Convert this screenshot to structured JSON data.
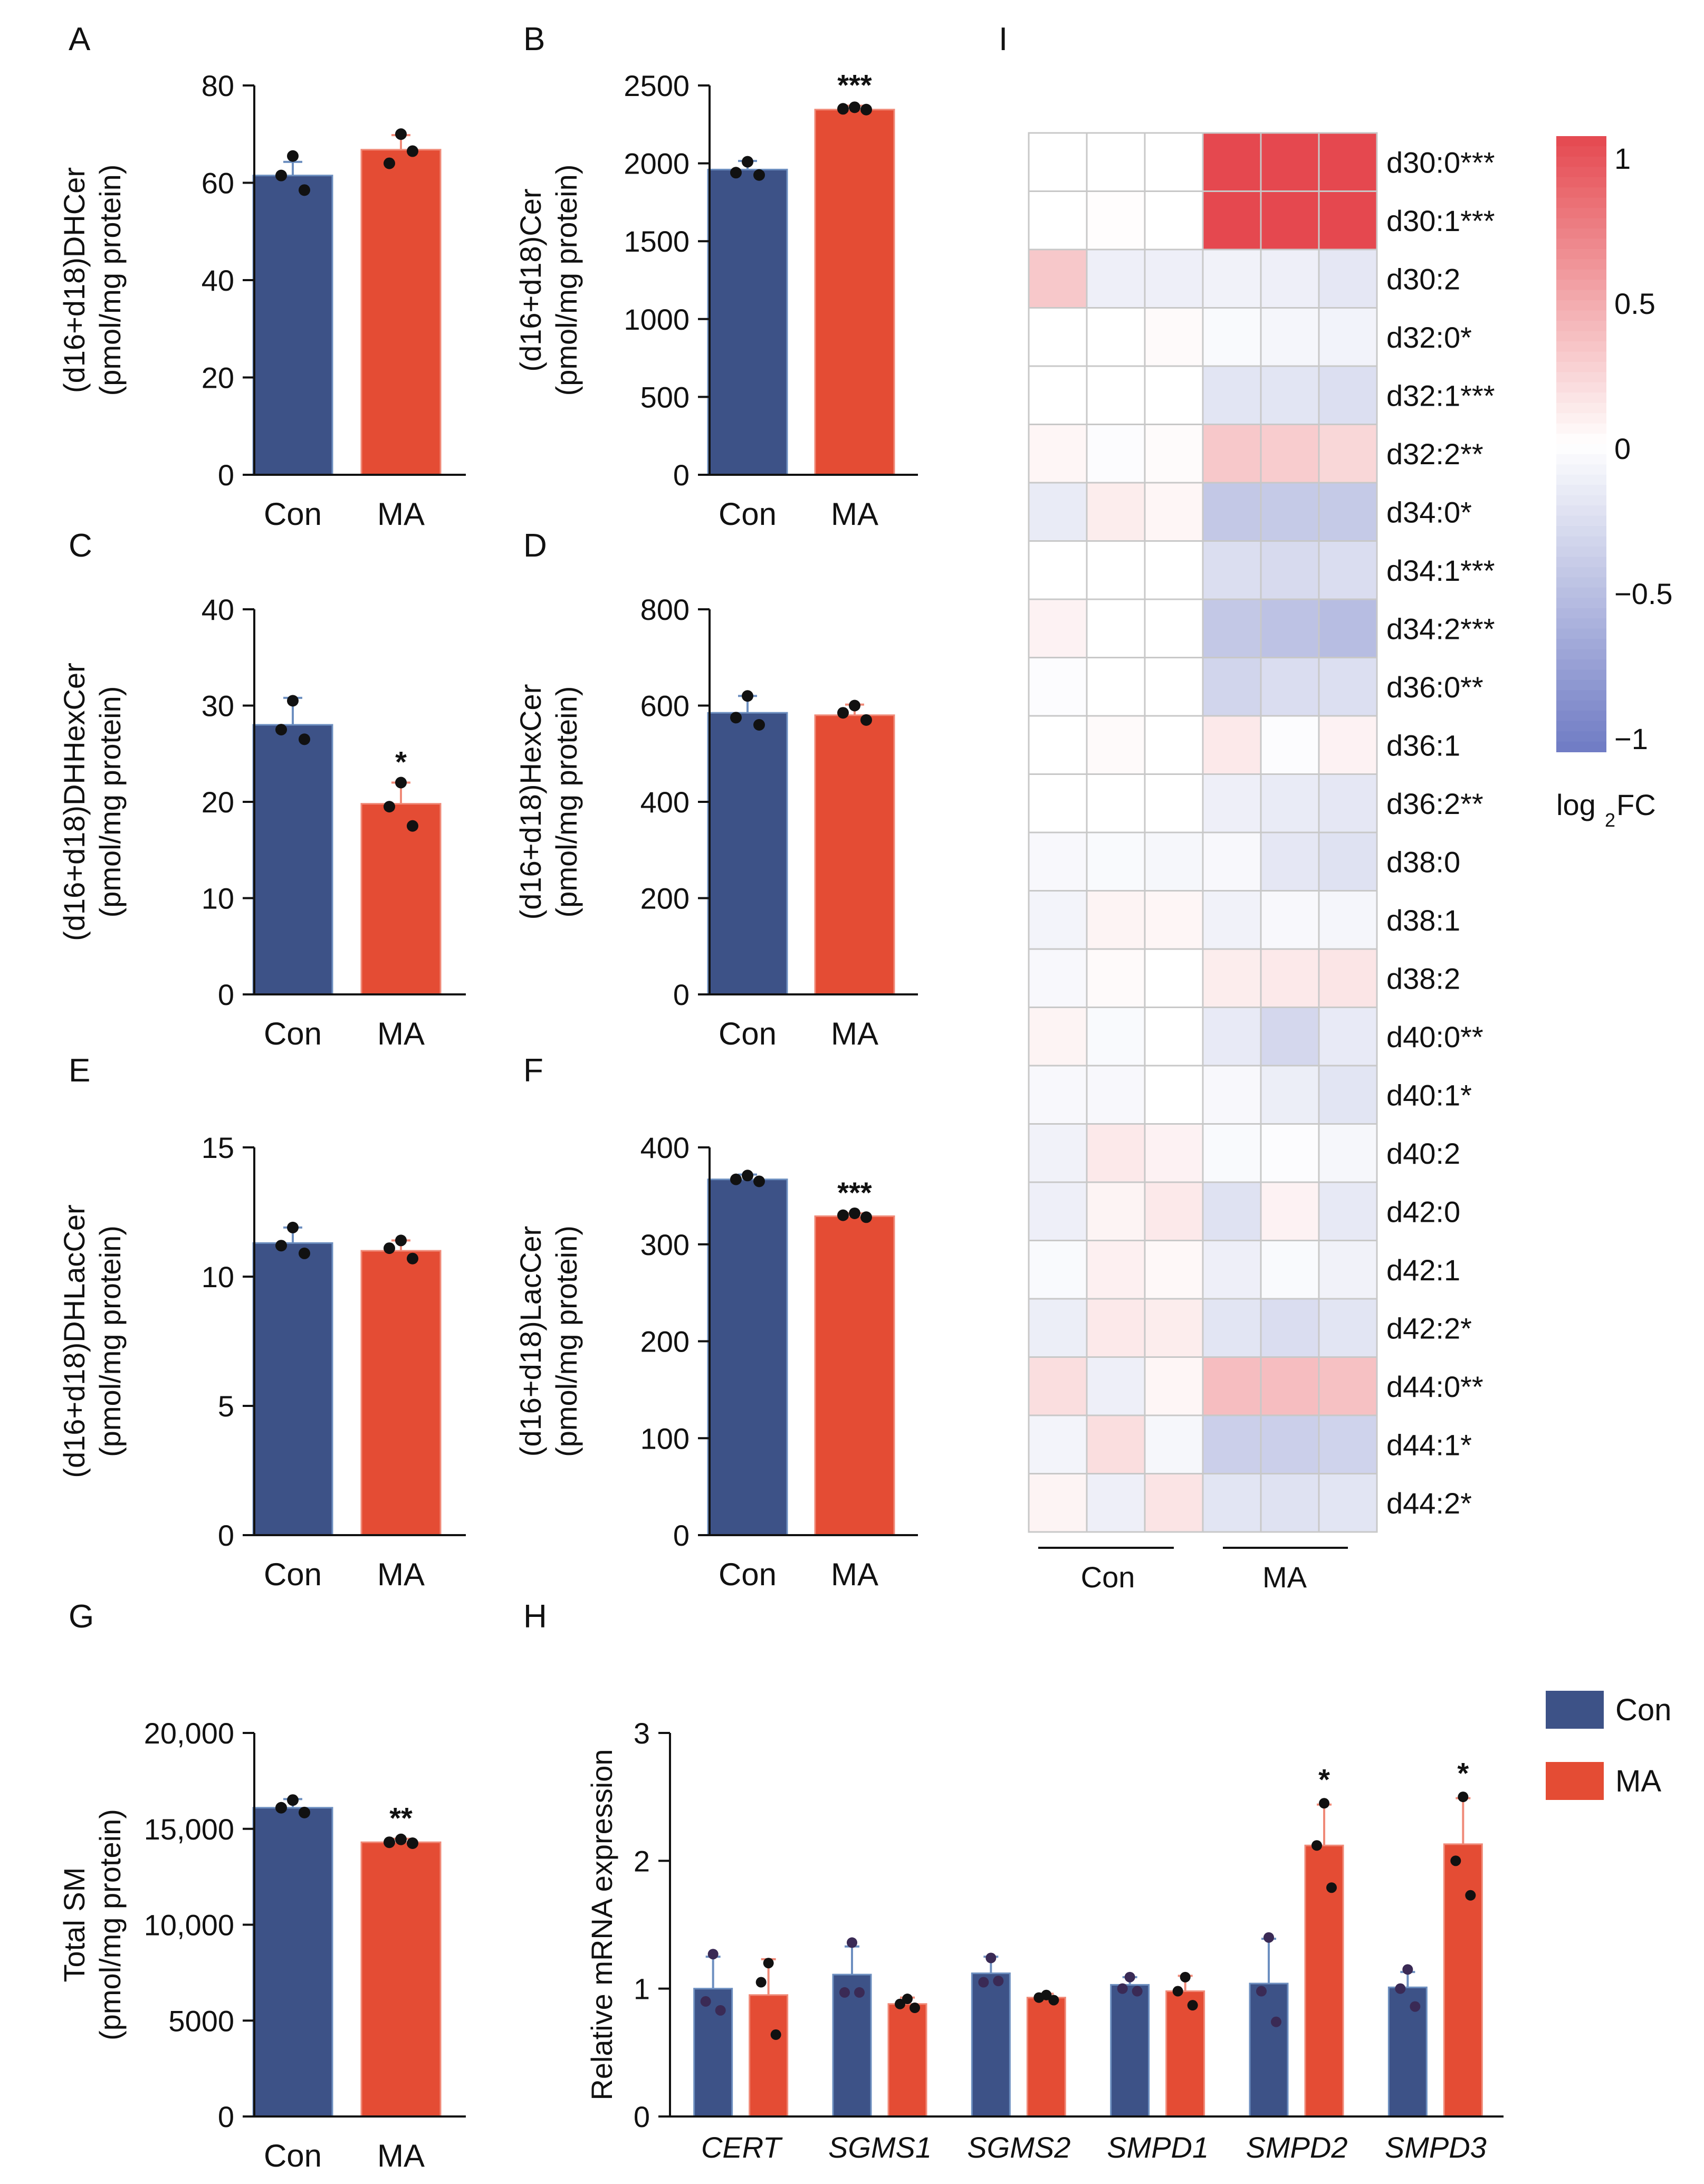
{
  "colors": {
    "con": "#3d5287",
    "ma": "#e44c34",
    "con_err": "#6d8fc0",
    "ma_err": "#f08a78",
    "dot": "#111111",
    "heat_pos": "#e5484f",
    "heat_neg": "#6f7bc4"
  },
  "chart_data": [
    {
      "id": "A",
      "panel": "A",
      "type": "bar",
      "categories": [
        "Con",
        "MA"
      ],
      "values": [
        61.5,
        66.8
      ],
      "errors": [
        2.8,
        3.0
      ],
      "points": [
        [
          65.5,
          61.5,
          58.5
        ],
        [
          70.0,
          64.0,
          66.5
        ]
      ],
      "ylabel": [
        "(d16+d18)DHCer",
        "(pmol/mg protein)"
      ],
      "ylim": [
        0,
        80
      ],
      "ticks": [
        0,
        20,
        40,
        60,
        80
      ],
      "tick_labels": [
        "0",
        "20",
        "40",
        "60",
        "80"
      ],
      "significance": [
        "",
        ""
      ]
    },
    {
      "id": "B",
      "panel": "B",
      "type": "bar",
      "categories": [
        "Con",
        "MA"
      ],
      "values": [
        1960,
        2345
      ],
      "errors": [
        55,
        25
      ],
      "points": [
        [
          2010,
          1940,
          1925
        ],
        [
          2360,
          2350,
          2345
        ]
      ],
      "ylabel": [
        "(d16+d18)Cer",
        "(pmol/mg protein)"
      ],
      "ylim": [
        0,
        2500
      ],
      "ticks": [
        0,
        500,
        1000,
        1500,
        2000,
        2500
      ],
      "tick_labels": [
        "0",
        "500",
        "1000",
        "1500",
        "2000",
        "2500"
      ],
      "significance": [
        "",
        "***"
      ]
    },
    {
      "id": "C",
      "panel": "C",
      "type": "bar",
      "categories": [
        "Con",
        "MA"
      ],
      "values": [
        28.0,
        19.8
      ],
      "errors": [
        2.8,
        2.2
      ],
      "points": [
        [
          30.5,
          27.5,
          26.5
        ],
        [
          22.0,
          19.5,
          17.5
        ]
      ],
      "ylabel": [
        "(d16+d18)DHHexCer",
        "(pmol/mg protein)"
      ],
      "ylim": [
        0,
        40
      ],
      "ticks": [
        0,
        10,
        20,
        30,
        40
      ],
      "tick_labels": [
        "0",
        "10",
        "20",
        "30",
        "40"
      ],
      "significance": [
        "",
        "*"
      ]
    },
    {
      "id": "D",
      "panel": "D",
      "type": "bar",
      "categories": [
        "Con",
        "MA"
      ],
      "values": [
        585,
        580
      ],
      "errors": [
        35,
        22
      ],
      "points": [
        [
          620,
          575,
          560
        ],
        [
          600,
          585,
          570
        ]
      ],
      "ylabel": [
        "(d16+d18)HexCer",
        "(pmol/mg protein)"
      ],
      "ylim": [
        0,
        800
      ],
      "ticks": [
        0,
        200,
        400,
        600,
        800
      ],
      "tick_labels": [
        "0",
        "200",
        "400",
        "600",
        "800"
      ],
      "significance": [
        "",
        ""
      ]
    },
    {
      "id": "E",
      "panel": "E",
      "type": "bar",
      "categories": [
        "Con",
        "MA"
      ],
      "values": [
        11.3,
        11.0
      ],
      "errors": [
        0.6,
        0.4
      ],
      "points": [
        [
          11.9,
          11.2,
          10.9
        ],
        [
          11.4,
          11.1,
          10.7
        ]
      ],
      "ylabel": [
        "(d16+d18)DHLacCer",
        "(pmol/mg protein)"
      ],
      "ylim": [
        0,
        15
      ],
      "ticks": [
        0,
        5,
        10,
        15
      ],
      "tick_labels": [
        "0",
        "5",
        "10",
        "15"
      ],
      "significance": [
        "",
        ""
      ]
    },
    {
      "id": "F",
      "panel": "F",
      "type": "bar",
      "categories": [
        "Con",
        "MA"
      ],
      "values": [
        367,
        329
      ],
      "errors": [
        5,
        3
      ],
      "points": [
        [
          371,
          367,
          365
        ],
        [
          332,
          330,
          328
        ]
      ],
      "ylabel": [
        "(d16+d18)LacCer",
        "(pmol/mg protein)"
      ],
      "ylim": [
        0,
        400
      ],
      "ticks": [
        0,
        100,
        200,
        300,
        400
      ],
      "tick_labels": [
        "0",
        "100",
        "200",
        "300",
        "400"
      ],
      "significance": [
        "",
        "***"
      ]
    },
    {
      "id": "G",
      "panel": "G",
      "type": "bar",
      "categories": [
        "Con",
        "MA"
      ],
      "values": [
        16100,
        14300
      ],
      "errors": [
        450,
        180
      ],
      "points": [
        [
          16500,
          16100,
          15850
        ],
        [
          14450,
          14300,
          14250
        ]
      ],
      "ylabel": [
        "Total SM",
        "(pmol/mg protein)"
      ],
      "ylim": [
        0,
        20000
      ],
      "ticks": [
        0,
        5000,
        10000,
        15000,
        20000
      ],
      "tick_labels": [
        "0",
        "5000",
        "10,000",
        "15,000",
        "20,000"
      ],
      "significance": [
        "",
        "**"
      ]
    },
    {
      "id": "H",
      "panel": "H",
      "type": "bar",
      "categories": [
        "CERT",
        "SGMS1",
        "SGMS2",
        "SMPD1",
        "SMPD2",
        "SMPD3"
      ],
      "series": [
        {
          "name": "Con",
          "values": [
            1.0,
            1.11,
            1.12,
            1.03,
            1.04,
            1.01
          ],
          "errors": [
            0.25,
            0.22,
            0.13,
            0.06,
            0.35,
            0.12
          ],
          "points": [
            [
              1.27,
              0.9,
              0.83
            ],
            [
              1.36,
              0.97,
              0.97
            ],
            [
              1.24,
              1.05,
              1.06
            ],
            [
              1.09,
              1.0,
              0.98
            ],
            [
              1.4,
              0.98,
              0.74
            ],
            [
              1.15,
              1.0,
              0.86
            ]
          ]
        },
        {
          "name": "MA",
          "values": [
            0.95,
            0.88,
            0.93,
            0.98,
            2.12,
            2.13
          ],
          "errors": [
            0.28,
            0.05,
            0.03,
            0.12,
            0.32,
            0.36
          ],
          "points": [
            [
              1.2,
              1.05,
              0.64
            ],
            [
              0.92,
              0.88,
              0.85
            ],
            [
              0.95,
              0.93,
              0.91
            ],
            [
              1.09,
              0.98,
              0.87
            ],
            [
              2.45,
              2.12,
              1.79
            ],
            [
              2.5,
              2.0,
              1.73
            ]
          ]
        }
      ],
      "ylabel": [
        "Relative mRNA  expression"
      ],
      "ylim": [
        0,
        3
      ],
      "ticks": [
        0,
        1,
        2,
        3
      ],
      "tick_labels": [
        "0",
        "1",
        "2",
        "3"
      ],
      "significance": [
        "",
        "",
        "",
        "",
        "*",
        "*"
      ],
      "legend": [
        "Con",
        "MA"
      ]
    },
    {
      "id": "I",
      "panel": "I",
      "type": "heatmap",
      "rows": [
        "d30:0***",
        "d30:1***",
        "d30:2",
        "d32:0*",
        "d32:1***",
        "d32:2**",
        "d34:0*",
        "d34:1***",
        "d34:2***",
        "d36:0**",
        "d36:1",
        "d36:2**",
        "d38:0",
        "d38:1",
        "d38:2",
        "d40:0**",
        "d40:1*",
        "d40:2",
        "d42:0",
        "d42:1",
        "d42:2*",
        "d44:0**",
        "d44:1*",
        "d44:2*"
      ],
      "groups": [
        "Con",
        "MA"
      ],
      "replicates_per_group": 3,
      "values": [
        [
          0.0,
          0.0,
          0.0,
          1.05,
          1.05,
          1.05
        ],
        [
          0.0,
          0.01,
          0.0,
          1.05,
          1.05,
          1.05
        ],
        [
          0.3,
          -0.12,
          -0.12,
          -0.1,
          -0.12,
          -0.18
        ],
        [
          0.0,
          0.0,
          0.03,
          -0.04,
          -0.07,
          -0.09
        ],
        [
          0.0,
          0.0,
          0.0,
          -0.2,
          -0.2,
          -0.24
        ],
        [
          0.05,
          -0.02,
          0.02,
          0.3,
          0.28,
          0.22
        ],
        [
          -0.15,
          0.1,
          0.05,
          -0.42,
          -0.4,
          -0.4
        ],
        [
          0.0,
          0.0,
          0.0,
          -0.25,
          -0.28,
          -0.26
        ],
        [
          0.07,
          0.0,
          0.0,
          -0.42,
          -0.46,
          -0.5
        ],
        [
          -0.02,
          0.0,
          0.0,
          -0.32,
          -0.26,
          -0.24
        ],
        [
          0.0,
          0.03,
          0.0,
          0.12,
          -0.02,
          0.07
        ],
        [
          0.0,
          0.0,
          0.0,
          -0.12,
          -0.15,
          -0.18
        ],
        [
          -0.05,
          -0.04,
          -0.06,
          -0.05,
          -0.18,
          -0.22
        ],
        [
          -0.08,
          0.06,
          0.05,
          -0.1,
          -0.05,
          -0.07
        ],
        [
          -0.05,
          0.03,
          0.0,
          0.1,
          0.12,
          0.14
        ],
        [
          0.06,
          -0.04,
          0.0,
          -0.16,
          -0.3,
          -0.16
        ],
        [
          -0.05,
          -0.05,
          0.0,
          -0.05,
          -0.13,
          -0.2
        ],
        [
          -0.1,
          0.12,
          0.07,
          -0.04,
          -0.02,
          -0.06
        ],
        [
          -0.12,
          0.06,
          0.12,
          -0.22,
          0.07,
          -0.17
        ],
        [
          -0.04,
          0.08,
          0.04,
          -0.12,
          -0.04,
          -0.1
        ],
        [
          -0.13,
          0.12,
          0.1,
          -0.2,
          -0.26,
          -0.2
        ],
        [
          0.18,
          -0.12,
          0.05,
          0.36,
          0.36,
          0.34
        ],
        [
          -0.08,
          0.18,
          -0.06,
          -0.36,
          -0.36,
          -0.33
        ],
        [
          0.06,
          -0.12,
          0.15,
          -0.2,
          -0.22,
          -0.2
        ]
      ],
      "colorbar": {
        "range": [
          -1,
          1
        ],
        "ticks": [
          1,
          0.5,
          0,
          -0.5,
          -1
        ],
        "tick_labels": [
          "1",
          "0.5",
          "0",
          "−0.5",
          "−1"
        ],
        "label_main": "log",
        "label_sub": "2",
        "label_tail": "FC"
      }
    }
  ]
}
